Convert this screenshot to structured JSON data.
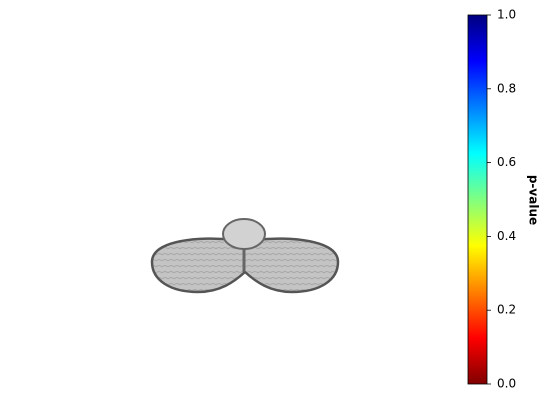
{
  "chart_data": {
    "type": "image",
    "colorbar": {
      "label": "p-value",
      "ylim": [
        0,
        1
      ],
      "yticks": [
        {
          "value": 0,
          "label": "0.0"
        },
        0.2,
        0.4,
        0.6,
        0.8,
        {
          "value": 1,
          "label": "1.0"
        }
      ],
      "colormap": [
        "#800000",
        "#ff0000",
        "#ff8000",
        "#ffff00",
        "#80ff80",
        "#00ffff",
        "#0080ff",
        "#0000ff",
        "#000080"
      ]
    }
  }
}
